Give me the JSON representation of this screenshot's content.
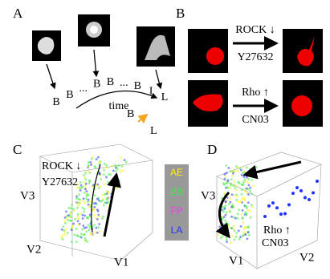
{
  "panel_labels": [
    "A",
    "B",
    "C",
    "D"
  ],
  "panel_a": {
    "sequence": [
      "B",
      "B",
      "...",
      "B",
      "B",
      "...",
      "B",
      "I",
      "L"
    ],
    "time": "time",
    "transition_from": "B",
    "transition_to": "L"
  },
  "panel_b": {
    "treatments": [
      {
        "label": "ROCK ↓",
        "drug": "Y27632"
      },
      {
        "label": "Rho ↑",
        "drug": "CN03"
      }
    ]
  },
  "panel_c": {
    "treatment": "ROCK ↓",
    "drug": "Y27632",
    "axes": [
      "V1",
      "V2",
      "V3"
    ]
  },
  "legend": [
    {
      "name": "AE",
      "color": "#ffee00"
    },
    {
      "name": "BB",
      "color": "#33ee33"
    },
    {
      "name": "FP",
      "color": "#ff33ff"
    },
    {
      "name": "LA",
      "color": "#2233ff"
    }
  ],
  "panel_d": {
    "treatment": "Rho ↑",
    "drug": "CN03",
    "axes": [
      "V1",
      "V2",
      "V3"
    ]
  }
}
